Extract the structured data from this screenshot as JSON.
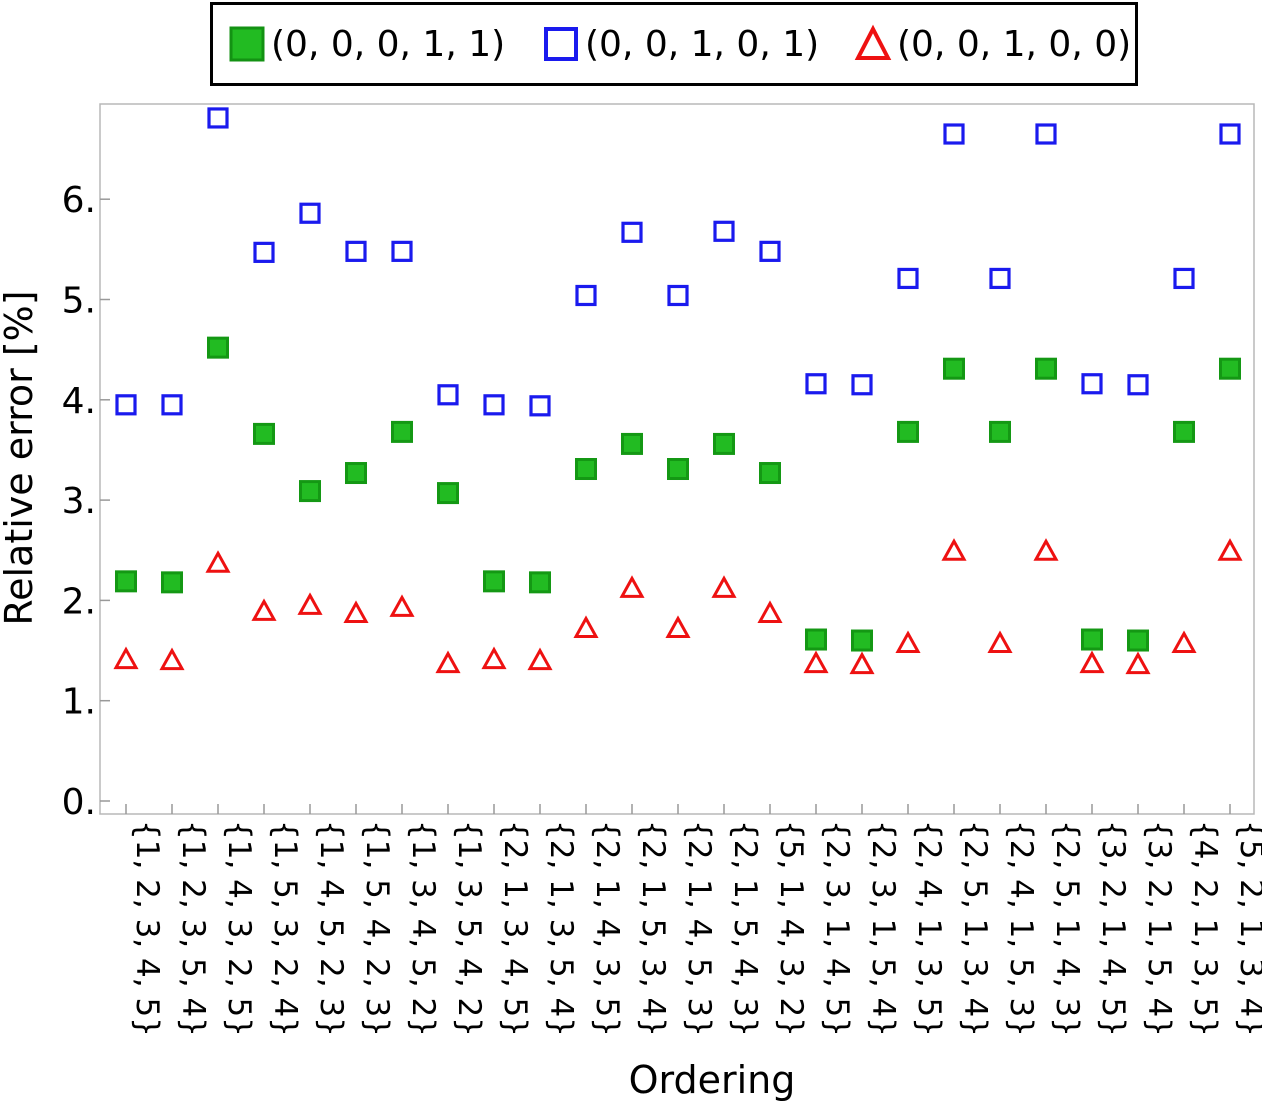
{
  "chart_data": {
    "type": "scatter",
    "xlabel": "Ordering",
    "ylabel": "Relative error [%]",
    "ylim": [
      0,
      6.9
    ],
    "yticks": [
      "0.",
      "1.",
      "2.",
      "3.",
      "4.",
      "5.",
      "6."
    ],
    "grid": false,
    "legend_position": "top, outside plot",
    "categories": [
      "{1, 2, 3, 4, 5}",
      "{1, 2, 3, 5, 4}",
      "{1, 4, 3, 2, 5}",
      "{1, 5, 3, 2, 4}",
      "{1, 4, 5, 2, 3}",
      "{1, 5, 4, 2, 3}",
      "{1, 3, 4, 5, 2}",
      "{1, 3, 5, 4, 2}",
      "{2, 1, 3, 4, 5}",
      "{2, 1, 3, 5, 4}",
      "{2, 1, 4, 3, 5}",
      "{2, 1, 5, 3, 4}",
      "{2, 1, 4, 5, 3}",
      "{2, 1, 5, 4, 3}",
      "{5, 1, 4, 3, 2}",
      "{2, 3, 1, 4, 5}",
      "{2, 3, 1, 5, 4}",
      "{2, 4, 1, 3, 5}",
      "{2, 5, 1, 3, 4}",
      "{2, 4, 1, 5, 3}",
      "{2, 5, 1, 4, 3}",
      "{3, 2, 1, 4, 5}",
      "{3, 2, 1, 5, 4}",
      "{4, 2, 1, 3, 5}",
      "{5, 2, 1, 3, 4}"
    ],
    "series": [
      {
        "name": "(0, 0, 0, 1, 1)",
        "marker": "filled-square",
        "color": "#22bb22",
        "values": [
          2.19,
          2.18,
          4.52,
          3.66,
          3.09,
          3.27,
          3.68,
          3.07,
          2.19,
          2.18,
          3.31,
          3.56,
          3.31,
          3.56,
          3.27,
          1.61,
          1.6,
          3.68,
          4.31,
          3.68,
          4.31,
          1.61,
          1.6,
          3.68,
          4.31
        ]
      },
      {
        "name": "(0, 0, 1, 0, 1)",
        "marker": "open-square",
        "color": "#1a1aee",
        "values": [
          3.95,
          3.95,
          6.81,
          5.47,
          5.86,
          5.48,
          5.48,
          4.05,
          3.95,
          3.94,
          5.04,
          5.67,
          5.04,
          5.68,
          5.48,
          4.16,
          4.15,
          5.21,
          6.65,
          5.21,
          6.65,
          4.16,
          4.15,
          5.21,
          6.65
        ]
      },
      {
        "name": "(0, 0, 1, 0, 0)",
        "marker": "open-triangle",
        "color": "#ee1111",
        "values": [
          1.41,
          1.4,
          2.37,
          1.89,
          1.95,
          1.87,
          1.93,
          1.37,
          1.41,
          1.4,
          1.72,
          2.12,
          1.72,
          2.12,
          1.87,
          1.37,
          1.36,
          1.57,
          2.49,
          1.57,
          2.49,
          1.37,
          1.36,
          1.57,
          2.49
        ]
      }
    ]
  }
}
